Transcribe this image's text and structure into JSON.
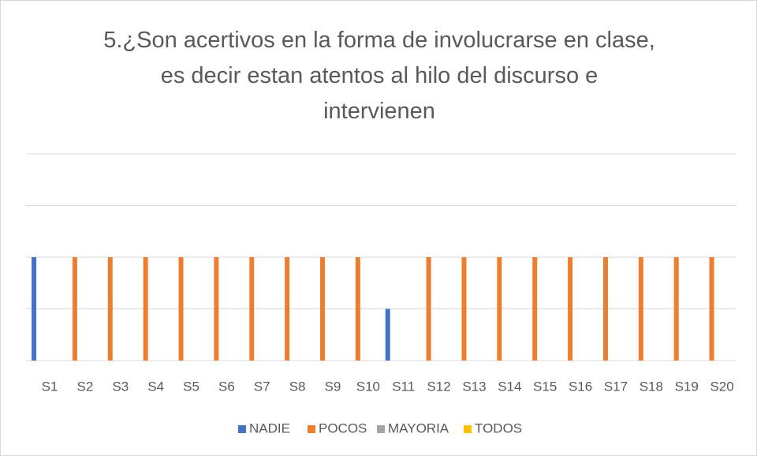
{
  "chart_data": {
    "type": "bar",
    "title": "5.¿Son acertivos en la forma de involucrarse en clase, es decir estan atentos al hilo del discurso e intervienen",
    "categories": [
      "S1",
      "S2",
      "S3",
      "S4",
      "S5",
      "S6",
      "S7",
      "S8",
      "S9",
      "S10",
      "S11",
      "S12",
      "S13",
      "S14",
      "S15",
      "S16",
      "S17",
      "S18",
      "S19",
      "S20"
    ],
    "series": [
      {
        "name": "NADIE",
        "color": "#4472c4",
        "values": [
          2,
          0,
          0,
          0,
          0,
          0,
          0,
          0,
          0,
          0,
          1,
          0,
          0,
          0,
          0,
          0,
          0,
          0,
          0,
          0
        ]
      },
      {
        "name": "POCOS",
        "color": "#ed7d31",
        "values": [
          0,
          2,
          2,
          2,
          2,
          2,
          2,
          2,
          2,
          2,
          0,
          2,
          2,
          2,
          2,
          2,
          2,
          2,
          2,
          2
        ]
      },
      {
        "name": "MAYORIA",
        "color": "#a5a5a5",
        "values": [
          0,
          0,
          0,
          0,
          0,
          0,
          0,
          0,
          0,
          0,
          0,
          0,
          0,
          0,
          0,
          0,
          0,
          0,
          0,
          0
        ]
      },
      {
        "name": "TODOS",
        "color": "#ffc000",
        "values": [
          0,
          0,
          0,
          0,
          0,
          0,
          0,
          0,
          0,
          0,
          0,
          0,
          0,
          0,
          0,
          0,
          0,
          0,
          0,
          0
        ]
      }
    ],
    "ylim": [
      0,
      4
    ],
    "yticks": [
      0,
      1,
      2,
      3,
      4
    ],
    "grid": true,
    "legend": "bottom"
  }
}
